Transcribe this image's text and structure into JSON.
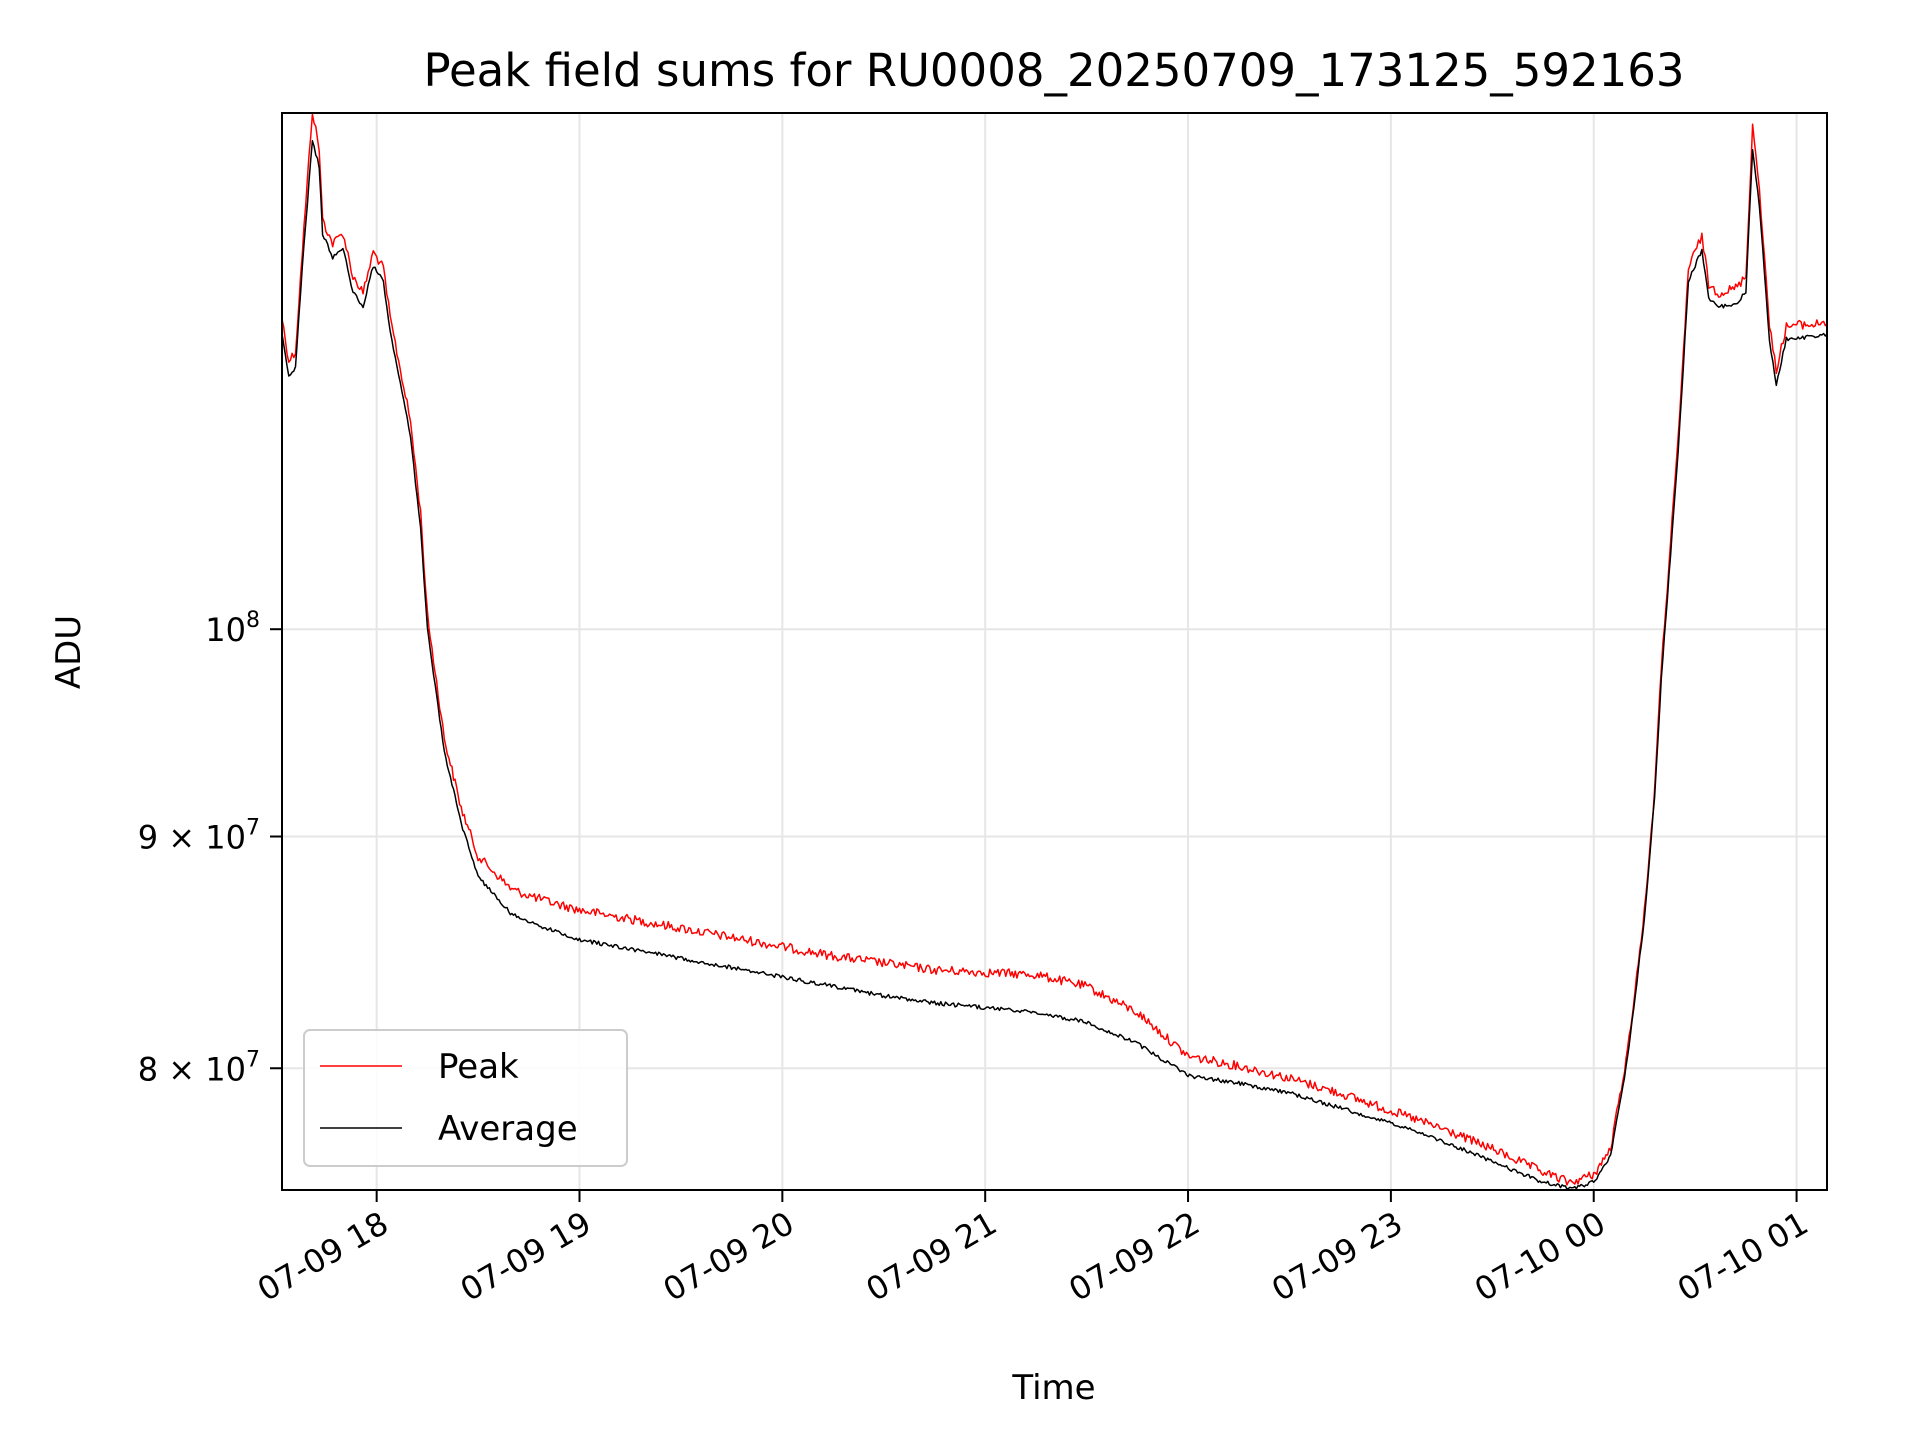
{
  "chart_data": {
    "type": "line",
    "title": "Peak field sums for RU0008_20250709_173125_592163",
    "xlabel": "Time",
    "ylabel": "ADU",
    "yscale": "log",
    "grid": true,
    "legend_position": "lower-left",
    "xlim": [
      "2025-07-09 17:32",
      "2025-07-10 01:09"
    ],
    "ylim": [
      75200000,
      130000000
    ],
    "x_ticks": [
      {
        "value": "2025-07-09 18:00",
        "label": "07-09 18"
      },
      {
        "value": "2025-07-09 19:00",
        "label": "07-09 19"
      },
      {
        "value": "2025-07-09 20:00",
        "label": "07-09 20"
      },
      {
        "value": "2025-07-09 21:00",
        "label": "07-09 21"
      },
      {
        "value": "2025-07-09 22:00",
        "label": "07-09 22"
      },
      {
        "value": "2025-07-09 23:00",
        "label": "07-09 23"
      },
      {
        "value": "2025-07-10 00:00",
        "label": "07-10 00"
      },
      {
        "value": "2025-07-10 01:00",
        "label": "07-10 01"
      }
    ],
    "y_ticks": [
      {
        "value": 100000000,
        "base": "10",
        "exp": "8"
      },
      {
        "value": 90000000,
        "base": "9 × 10",
        "exp": "7"
      },
      {
        "value": 80000000,
        "base": "8 × 10",
        "exp": "7"
      }
    ],
    "series": [
      {
        "name": "Peak",
        "color": "#ff0000",
        "points": [
          [
            "2025-07-09 17:32",
            117000000
          ],
          [
            "2025-07-09 17:34",
            114500000
          ],
          [
            "2025-07-09 17:36",
            115000000
          ],
          [
            "2025-07-09 17:38",
            121000000
          ],
          [
            "2025-07-09 17:41",
            130000000
          ],
          [
            "2025-07-09 17:43",
            127500000
          ],
          [
            "2025-07-09 17:44",
            123000000
          ],
          [
            "2025-07-09 17:47",
            121500000
          ],
          [
            "2025-07-09 17:50",
            122200000
          ],
          [
            "2025-07-09 17:53",
            119500000
          ],
          [
            "2025-07-09 17:56",
            118500000
          ],
          [
            "2025-07-09 17:59",
            121000000
          ],
          [
            "2025-07-09 18:02",
            120000000
          ],
          [
            "2025-07-09 18:04",
            117000000
          ],
          [
            "2025-07-09 18:07",
            114000000
          ],
          [
            "2025-07-09 18:10",
            111000000
          ],
          [
            "2025-07-09 18:13",
            106000000
          ],
          [
            "2025-07-09 18:15",
            100600000
          ],
          [
            "2025-07-09 18:20",
            94500000
          ],
          [
            "2025-07-09 18:25",
            91200000
          ],
          [
            "2025-07-09 18:30",
            89000000
          ],
          [
            "2025-07-09 18:40",
            87500000
          ],
          [
            "2025-07-09 18:50",
            87000000
          ],
          [
            "2025-07-09 19:00",
            86600000
          ],
          [
            "2025-07-09 19:15",
            86200000
          ],
          [
            "2025-07-09 19:30",
            85800000
          ],
          [
            "2025-07-09 19:45",
            85400000
          ],
          [
            "2025-07-09 20:00",
            85000000
          ],
          [
            "2025-07-09 20:15",
            84600000
          ],
          [
            "2025-07-09 20:30",
            84300000
          ],
          [
            "2025-07-09 20:45",
            84000000
          ],
          [
            "2025-07-09 21:00",
            83900000
          ],
          [
            "2025-07-09 21:15",
            83800000
          ],
          [
            "2025-07-09 21:30",
            83300000
          ],
          [
            "2025-07-09 21:45",
            82200000
          ],
          [
            "2025-07-09 22:00",
            80400000
          ],
          [
            "2025-07-09 22:15",
            80000000
          ],
          [
            "2025-07-09 22:30",
            79500000
          ],
          [
            "2025-07-09 22:45",
            78900000
          ],
          [
            "2025-07-09 23:00",
            78200000
          ],
          [
            "2025-07-09 23:15",
            77500000
          ],
          [
            "2025-07-09 23:30",
            76700000
          ],
          [
            "2025-07-09 23:45",
            75800000
          ],
          [
            "2025-07-09 23:53",
            75400000
          ],
          [
            "2025-07-10 00:00",
            75700000
          ],
          [
            "2025-07-10 00:05",
            76700000
          ],
          [
            "2025-07-10 00:10",
            80600000
          ],
          [
            "2025-07-10 00:15",
            86500000
          ],
          [
            "2025-07-10 00:18",
            92000000
          ],
          [
            "2025-07-10 00:20",
            98000000
          ],
          [
            "2025-07-10 00:25",
            110000000
          ],
          [
            "2025-07-10 00:28",
            120000000
          ],
          [
            "2025-07-10 00:32",
            122000000
          ],
          [
            "2025-07-10 00:34",
            119000000
          ],
          [
            "2025-07-10 00:37",
            118500000
          ],
          [
            "2025-07-10 00:42",
            118800000
          ],
          [
            "2025-07-10 00:45",
            119500000
          ],
          [
            "2025-07-10 00:47",
            129000000
          ],
          [
            "2025-07-10 00:49",
            125000000
          ],
          [
            "2025-07-10 00:52",
            116500000
          ],
          [
            "2025-07-10 00:54",
            114000000
          ],
          [
            "2025-07-10 00:57",
            116500000
          ],
          [
            "2025-07-10 01:00",
            116600000
          ],
          [
            "2025-07-10 01:05",
            116600000
          ],
          [
            "2025-07-10 01:09",
            116800000
          ]
        ]
      },
      {
        "name": "Average",
        "color": "#000000",
        "points": [
          [
            "2025-07-09 17:32",
            116300000
          ],
          [
            "2025-07-09 17:34",
            113700000
          ],
          [
            "2025-07-09 17:36",
            114200000
          ],
          [
            "2025-07-09 17:38",
            120200000
          ],
          [
            "2025-07-09 17:41",
            128200000
          ],
          [
            "2025-07-09 17:43",
            126500000
          ],
          [
            "2025-07-09 17:44",
            122300000
          ],
          [
            "2025-07-09 17:47",
            120800000
          ],
          [
            "2025-07-09 17:50",
            121400000
          ],
          [
            "2025-07-09 17:53",
            118700000
          ],
          [
            "2025-07-09 17:56",
            117800000
          ],
          [
            "2025-07-09 17:59",
            120300000
          ],
          [
            "2025-07-09 18:02",
            119300000
          ],
          [
            "2025-07-09 18:04",
            116300000
          ],
          [
            "2025-07-09 18:07",
            113300000
          ],
          [
            "2025-07-09 18:10",
            110300000
          ],
          [
            "2025-07-09 18:13",
            105300000
          ],
          [
            "2025-07-09 18:15",
            100000000
          ],
          [
            "2025-07-09 18:20",
            94000000
          ],
          [
            "2025-07-09 18:25",
            90600000
          ],
          [
            "2025-07-09 18:30",
            88200000
          ],
          [
            "2025-07-09 18:40",
            86500000
          ],
          [
            "2025-07-09 18:50",
            85900000
          ],
          [
            "2025-07-09 19:00",
            85400000
          ],
          [
            "2025-07-09 19:15",
            85000000
          ],
          [
            "2025-07-09 19:30",
            84600000
          ],
          [
            "2025-07-09 19:45",
            84200000
          ],
          [
            "2025-07-09 20:00",
            83800000
          ],
          [
            "2025-07-09 20:15",
            83400000
          ],
          [
            "2025-07-09 20:30",
            83000000
          ],
          [
            "2025-07-09 20:45",
            82700000
          ],
          [
            "2025-07-09 21:00",
            82500000
          ],
          [
            "2025-07-09 21:15",
            82300000
          ],
          [
            "2025-07-09 21:30",
            81900000
          ],
          [
            "2025-07-09 21:45",
            81000000
          ],
          [
            "2025-07-09 22:00",
            79700000
          ],
          [
            "2025-07-09 22:15",
            79400000
          ],
          [
            "2025-07-09 22:30",
            79000000
          ],
          [
            "2025-07-09 22:45",
            78400000
          ],
          [
            "2025-07-09 23:00",
            77800000
          ],
          [
            "2025-07-09 23:15",
            77100000
          ],
          [
            "2025-07-09 23:30",
            76300000
          ],
          [
            "2025-07-09 23:45",
            75500000
          ],
          [
            "2025-07-09 23:53",
            75250000
          ],
          [
            "2025-07-10 00:00",
            75500000
          ],
          [
            "2025-07-10 00:05",
            76500000
          ],
          [
            "2025-07-10 00:10",
            80400000
          ],
          [
            "2025-07-10 00:15",
            86300000
          ],
          [
            "2025-07-10 00:18",
            91800000
          ],
          [
            "2025-07-10 00:20",
            97500000
          ],
          [
            "2025-07-10 00:25",
            109500000
          ],
          [
            "2025-07-10 00:28",
            119300000
          ],
          [
            "2025-07-10 00:32",
            121300000
          ],
          [
            "2025-07-10 00:34",
            118300000
          ],
          [
            "2025-07-10 00:37",
            117800000
          ],
          [
            "2025-07-10 00:42",
            118000000
          ],
          [
            "2025-07-10 00:45",
            118700000
          ],
          [
            "2025-07-10 00:47",
            127500000
          ],
          [
            "2025-07-10 00:49",
            124000000
          ],
          [
            "2025-07-10 00:52",
            115800000
          ],
          [
            "2025-07-10 00:54",
            113300000
          ],
          [
            "2025-07-10 00:57",
            115900000
          ],
          [
            "2025-07-10 01:00",
            116000000
          ],
          [
            "2025-07-10 01:05",
            116000000
          ],
          [
            "2025-07-10 01:09",
            116200000
          ]
        ]
      }
    ]
  }
}
